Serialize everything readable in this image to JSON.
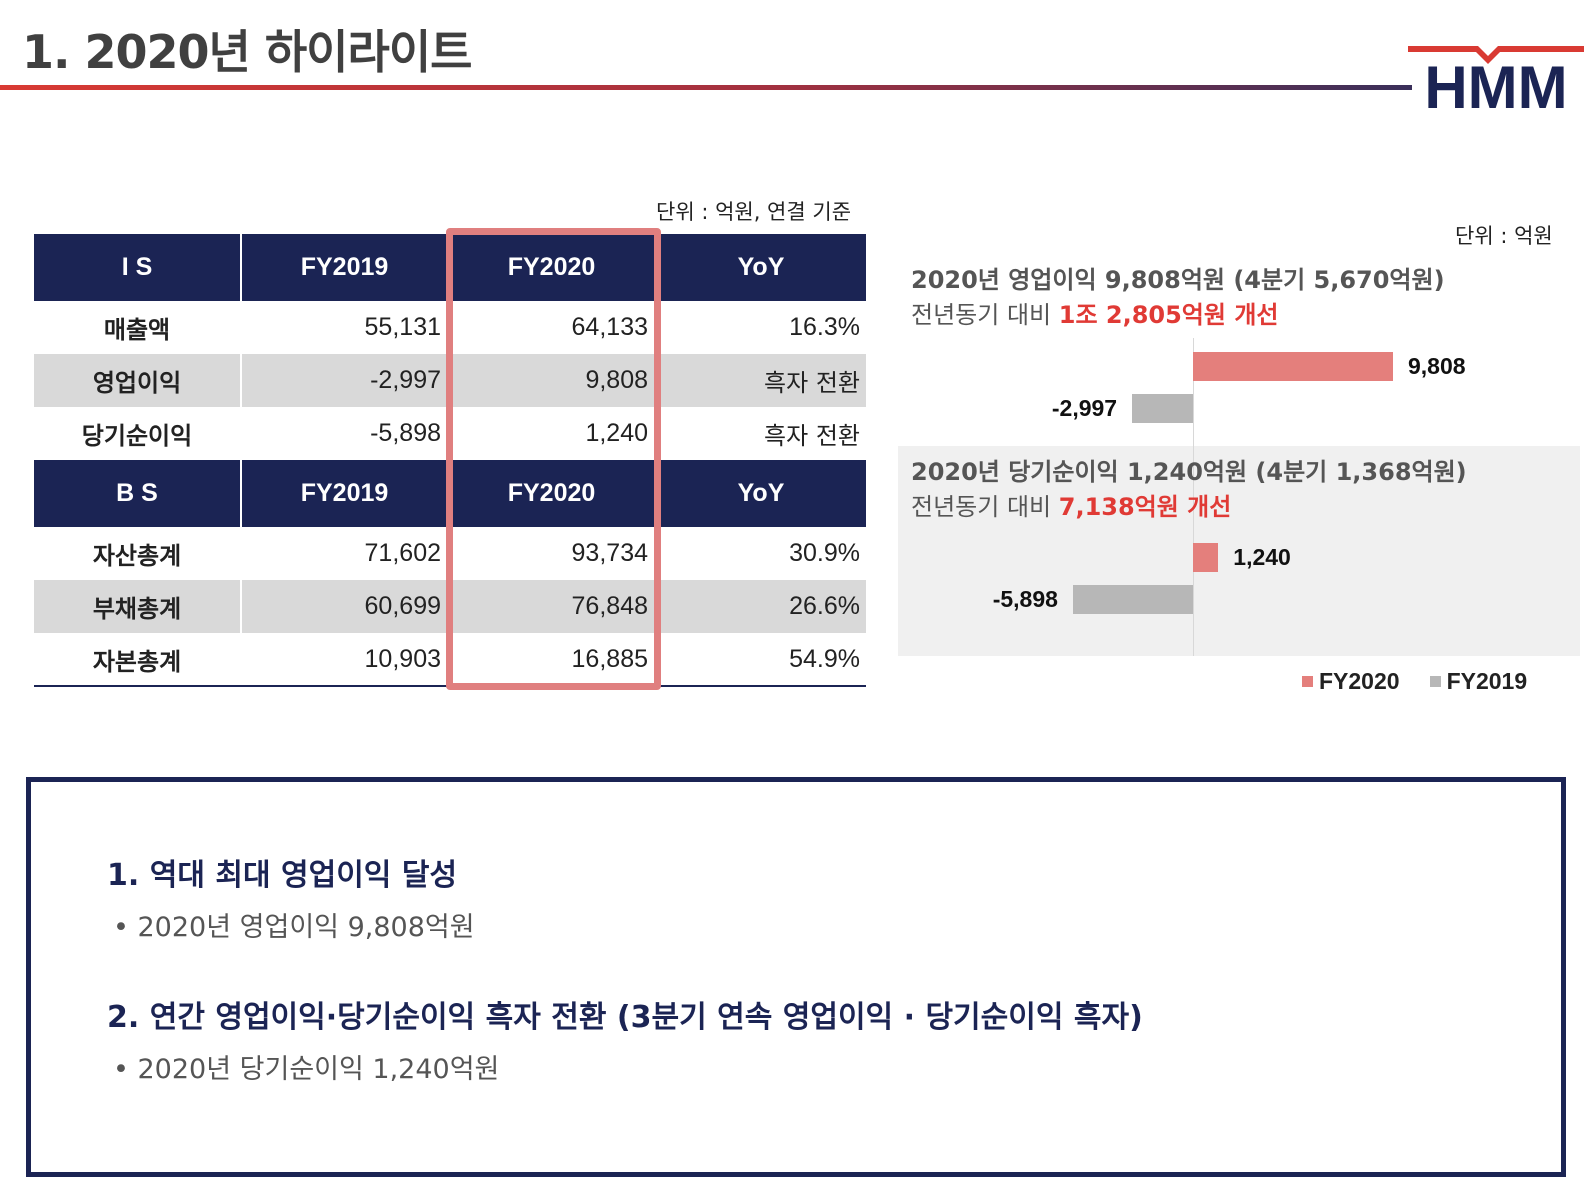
{
  "header": {
    "title": "1. 2020년 하이라이트",
    "logo_text": "HMM"
  },
  "table": {
    "unit": "단위 : 억원, 연결 기준",
    "is_header": [
      "I S",
      "FY2019",
      "FY2020",
      "YoY"
    ],
    "is_rows": [
      {
        "label": "매출액",
        "fy2019": "55,131",
        "fy2020": "64,133",
        "yoy": "16.3%"
      },
      {
        "label": "영업이익",
        "fy2019": "-2,997",
        "fy2020": "9,808",
        "yoy": "흑자 전환"
      },
      {
        "label": "당기순이익",
        "fy2019": "-5,898",
        "fy2020": "1,240",
        "yoy": "흑자 전환"
      }
    ],
    "bs_header": [
      "B S",
      "FY2019",
      "FY2020",
      "YoY"
    ],
    "bs_rows": [
      {
        "label": "자산총계",
        "fy2019": "71,602",
        "fy2020": "93,734",
        "yoy": "30.9%"
      },
      {
        "label": "부채총계",
        "fy2019": "60,699",
        "fy2020": "76,848",
        "yoy": "26.6%"
      },
      {
        "label": "자본총계",
        "fy2019": "10,903",
        "fy2020": "16,885",
        "yoy": "54.9%"
      }
    ]
  },
  "chart": {
    "unit": "단위 : 억원",
    "op_title": "2020년 영업이익 9,808억원 (4분기 5,670억원)",
    "op_sub_prefix": "전년동기 대비 ",
    "op_sub_amount": "1조 2,805억원 개선",
    "net_title": "2020년 당기순이익 1,240억원 (4분기 1,368억원)",
    "net_sub_prefix": "전년동기 대비 ",
    "net_sub_amount": "7,138억원 개선",
    "legend_2020": "FY2020",
    "legend_2019": "FY2019",
    "color_2020": "#e47f7c",
    "color_2019": "#b7b7b7"
  },
  "chart_data": [
    {
      "type": "bar",
      "orientation": "horizontal",
      "title": "2020년 영업이익 9,808억원 (4분기 5,670억원)",
      "series": [
        {
          "name": "FY2020",
          "values": [
            9808
          ],
          "labels": [
            "9,808"
          ]
        },
        {
          "name": "FY2019",
          "values": [
            -2997
          ],
          "labels": [
            "-2,997"
          ]
        }
      ]
    },
    {
      "type": "bar",
      "orientation": "horizontal",
      "title": "2020년 당기순이익 1,240억원 (4분기 1,368억원)",
      "series": [
        {
          "name": "FY2020",
          "values": [
            1240
          ],
          "labels": [
            "1,240"
          ]
        },
        {
          "name": "FY2019",
          "values": [
            -5898
          ],
          "labels": [
            "-5,898"
          ]
        }
      ]
    }
  ],
  "summary": {
    "point1": "1. 역대 최대 영업이익 달성",
    "bullet1": "• 2020년 영업이익 9,808억원",
    "point2": "2. 연간 영업이익·당기순이익 흑자 전환 (3분기 연속 영업이익 · 당기순이익 흑자)",
    "bullet2": "• 2020년 당기순이익 1,240억원"
  }
}
